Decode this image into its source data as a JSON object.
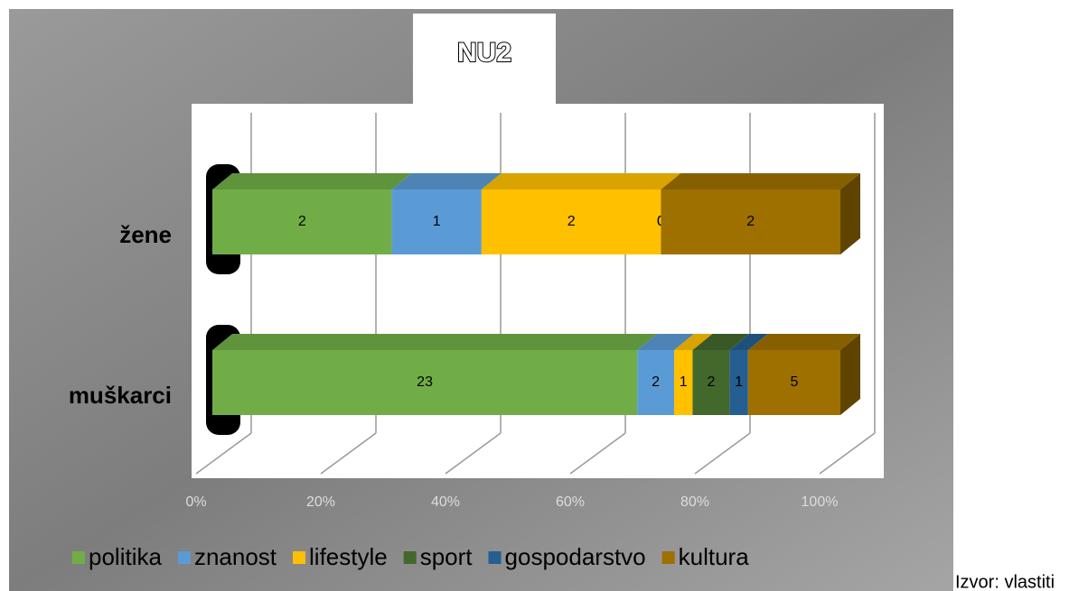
{
  "chart_data": {
    "type": "stacked-bar-100-3d",
    "title": "NU2",
    "categories": [
      "žene",
      "muškarci"
    ],
    "series": [
      {
        "name": "politika",
        "color": "#70ad47",
        "values": [
          2,
          23
        ]
      },
      {
        "name": "znanost",
        "color": "#5b9bd5",
        "values": [
          1,
          2
        ]
      },
      {
        "name": "lifestyle",
        "color": "#ffc000",
        "values": [
          2,
          1
        ]
      },
      {
        "name": "sport",
        "color": "#43682b",
        "values": [
          0,
          2
        ]
      },
      {
        "name": "gospodarstvo",
        "color": "#255e91",
        "values": [
          0,
          1
        ]
      },
      {
        "name": "kultura",
        "color": "#9e7000",
        "values": [
          2,
          5
        ]
      }
    ],
    "xlim": [
      0,
      100
    ],
    "xticks": [
      {
        "value": 0,
        "label": "0%"
      },
      {
        "value": 20,
        "label": "20%"
      },
      {
        "value": 40,
        "label": "40%"
      },
      {
        "value": 60,
        "label": "60%"
      },
      {
        "value": 80,
        "label": "80%"
      },
      {
        "value": 100,
        "label": "100%"
      }
    ],
    "grid": true,
    "legend": "bottom",
    "source": "Izvor: vlastiti"
  }
}
